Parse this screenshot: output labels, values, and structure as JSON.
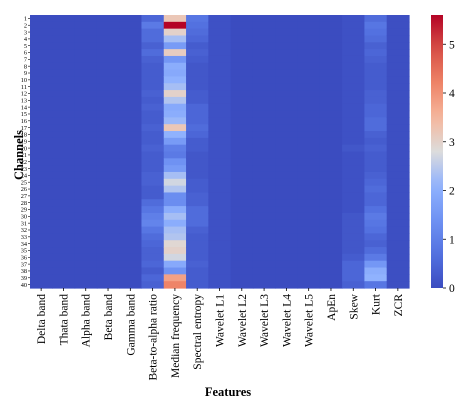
{
  "chart_data": {
    "type": "heatmap",
    "title": "",
    "xlabel": "Features",
    "ylabel": "Channels",
    "colormap": "coolwarm",
    "colorbar": {
      "vmin": 0,
      "vmax": 5.6,
      "ticks": [
        "0",
        "1",
        "2",
        "3",
        "4",
        "5"
      ]
    },
    "x_labels": [
      "Delta band",
      "Thata band",
      "Alpha band",
      "Beta band",
      "Gamma band",
      "Beta-to-alpha ratio",
      "Median frequency",
      "Spectral entropy",
      "Wavelet L1",
      "Wavelet L2",
      "Wavelet L3",
      "Wavelet L4",
      "Wavelet L5",
      "ApEn",
      "Skew",
      "Kurt",
      "ZCR"
    ],
    "y_labels": [
      "1",
      "2",
      "3",
      "4",
      "5",
      "6",
      "7",
      "8",
      "9",
      "10",
      "11",
      "12",
      "13",
      "14",
      "15",
      "16",
      "17",
      "18",
      "19",
      "20",
      "21",
      "22",
      "23",
      "24",
      "25",
      "26",
      "27",
      "28",
      "29",
      "30",
      "31",
      "32",
      "33",
      "34",
      "35",
      "36",
      "37",
      "38",
      "39",
      "40"
    ],
    "columns": [
      {
        "name": "Beta-to-alpha ratio",
        "values": [
          0.5,
          0.9,
          0.6,
          0.6,
          0.4,
          0.6,
          0.4,
          0.3,
          0.3,
          0.3,
          0.3,
          0.4,
          0.3,
          0.4,
          0.3,
          0.3,
          0.4,
          0.3,
          0.3,
          0.4,
          0.3,
          0.3,
          0.3,
          0.4,
          0.4,
          0.3,
          0.3,
          0.6,
          0.8,
          1.0,
          1.1,
          0.8,
          0.6,
          0.5,
          0.4,
          0.4,
          0.5,
          0.3,
          0.5,
          0.4
        ]
      },
      {
        "name": "Median frequency",
        "values": [
          3.2,
          5.6,
          3.0,
          2.3,
          1.6,
          3.1,
          1.5,
          2.0,
          1.9,
          2.1,
          2.3,
          3.0,
          2.4,
          1.9,
          2.0,
          2.2,
          3.2,
          2.1,
          1.6,
          1.0,
          0.9,
          1.4,
          1.6,
          2.3,
          2.7,
          2.4,
          1.3,
          1.3,
          2.0,
          2.3,
          2.0,
          2.3,
          2.4,
          2.9,
          3.0,
          2.7,
          1.9,
          1.4,
          3.8,
          4.2
        ]
      },
      {
        "name": "Spectral entropy",
        "values": [
          0.8,
          0.7,
          0.6,
          0.5,
          0.3,
          0.4,
          0.3,
          0.2,
          0.2,
          0.2,
          0.2,
          0.3,
          0.3,
          0.5,
          0.5,
          0.5,
          0.6,
          0.5,
          0.3,
          0.3,
          0.2,
          0.2,
          0.2,
          0.2,
          0.3,
          0.3,
          0.4,
          0.4,
          0.6,
          0.6,
          0.6,
          0.4,
          0.3,
          0.3,
          0.3,
          0.3,
          0.4,
          0.3,
          0.3,
          0.3
        ]
      },
      {
        "name": "Wavelet L1",
        "values": [
          0.1,
          0.1,
          0.1,
          0.1,
          0.1,
          0.1,
          0.1,
          0.1,
          0.1,
          0.1,
          0.1,
          0.1,
          0.1,
          0.1,
          0.1,
          0.1,
          0.1,
          0.1,
          0.1,
          0.1,
          0.1,
          0.1,
          0.1,
          0.1,
          0.1,
          0.1,
          0.1,
          0.1,
          0.1,
          0.1,
          0.1,
          0.1,
          0.1,
          0.1,
          0.1,
          0.1,
          0.1,
          0.1,
          0.1,
          0.1
        ]
      },
      {
        "name": "Skew",
        "values": [
          0.1,
          0.1,
          0.1,
          0.1,
          0.1,
          0.1,
          0.1,
          0.1,
          0.1,
          0.1,
          0.1,
          0.1,
          0.1,
          0.1,
          0.1,
          0.1,
          0.1,
          0.1,
          0.1,
          0.2,
          0.1,
          0.1,
          0.1,
          0.1,
          0.1,
          0.1,
          0.1,
          0.1,
          0.1,
          0.2,
          0.2,
          0.2,
          0.2,
          0.2,
          0.2,
          0.3,
          0.5,
          0.5,
          0.5,
          0.4
        ]
      },
      {
        "name": "Kurt",
        "values": [
          0.6,
          0.8,
          0.7,
          0.6,
          0.4,
          0.5,
          0.4,
          0.3,
          0.3,
          0.3,
          0.3,
          0.4,
          0.4,
          0.5,
          0.5,
          0.6,
          0.6,
          0.4,
          0.3,
          0.4,
          0.3,
          0.3,
          0.3,
          0.4,
          0.5,
          0.6,
          0.5,
          0.5,
          0.7,
          0.9,
          0.8,
          0.7,
          0.5,
          0.4,
          0.6,
          0.9,
          1.5,
          2.0,
          2.1,
          0.8
        ]
      },
      {
        "name": "ZCR",
        "values": [
          0.05,
          0.05,
          0.05,
          0.05,
          0.05,
          0.05,
          0.05,
          0.05,
          0.05,
          0.05,
          0.05,
          0.05,
          0.05,
          0.05,
          0.05,
          0.05,
          0.05,
          0.05,
          0.05,
          0.05,
          0.05,
          0.05,
          0.05,
          0.05,
          0.05,
          0.05,
          0.05,
          0.05,
          0.05,
          0.05,
          0.05,
          0.05,
          0.05,
          0.05,
          0.05,
          0.05,
          0.05,
          0.05,
          0.05,
          0.05
        ]
      }
    ],
    "default_value": 0.0
  }
}
